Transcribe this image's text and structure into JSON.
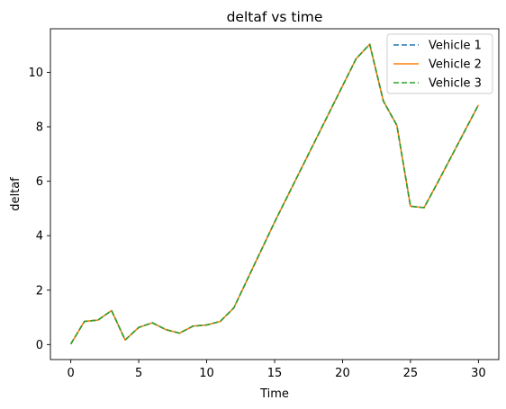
{
  "chart_data": {
    "type": "line",
    "title": "deltaf vs time",
    "xlabel": "Time",
    "ylabel": "deltaf",
    "xlim": [
      -1.5,
      31.5
    ],
    "ylim": [
      -0.55,
      11.6
    ],
    "xticks": [
      0,
      5,
      10,
      15,
      20,
      25,
      30
    ],
    "yticks": [
      0,
      2,
      4,
      6,
      8,
      10
    ],
    "grid": false,
    "legend_position": "top-right",
    "x": [
      0,
      1,
      2,
      3,
      4,
      5,
      6,
      7,
      8,
      9,
      10,
      11,
      12,
      13,
      14,
      15,
      16,
      17,
      18,
      19,
      20,
      21,
      22,
      23,
      24,
      25,
      26,
      27,
      28,
      29,
      30
    ],
    "series": [
      {
        "name": "Vehicle 1",
        "color": "#1f77b4",
        "style": "dashed",
        "values": [
          0.02,
          0.85,
          0.9,
          1.25,
          0.17,
          0.63,
          0.8,
          0.55,
          0.42,
          0.68,
          0.72,
          0.85,
          1.35,
          2.4,
          3.45,
          4.5,
          5.5,
          6.5,
          7.5,
          8.5,
          9.5,
          10.5,
          11.03,
          8.95,
          8.05,
          5.08,
          5.03,
          5.95,
          6.9,
          7.85,
          8.8
        ]
      },
      {
        "name": "Vehicle 2",
        "color": "#ff7f0e",
        "style": "solid",
        "values": [
          0.02,
          0.85,
          0.9,
          1.25,
          0.17,
          0.63,
          0.8,
          0.55,
          0.42,
          0.68,
          0.72,
          0.85,
          1.35,
          2.4,
          3.45,
          4.5,
          5.5,
          6.5,
          7.5,
          8.5,
          9.5,
          10.5,
          11.03,
          8.95,
          8.05,
          5.08,
          5.03,
          5.95,
          6.9,
          7.85,
          8.8
        ]
      },
      {
        "name": "Vehicle 3",
        "color": "#2ca02c",
        "style": "dashed",
        "values": [
          0.02,
          0.85,
          0.9,
          1.25,
          0.17,
          0.63,
          0.8,
          0.55,
          0.42,
          0.68,
          0.72,
          0.85,
          1.35,
          2.4,
          3.45,
          4.5,
          5.5,
          6.5,
          7.5,
          8.5,
          9.5,
          10.5,
          11.03,
          8.95,
          8.05,
          5.08,
          5.03,
          5.95,
          6.9,
          7.85,
          8.8
        ]
      }
    ]
  }
}
